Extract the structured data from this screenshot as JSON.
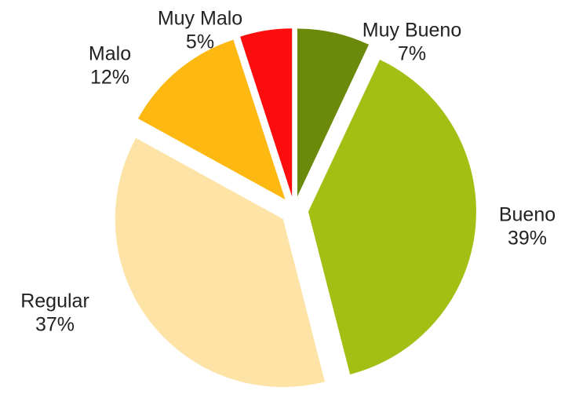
{
  "chart_data": {
    "type": "pie",
    "categories": [
      "Muy Bueno",
      "Bueno",
      "Regular",
      "Malo",
      "Muy Malo"
    ],
    "values": [
      7,
      39,
      37,
      12,
      5
    ],
    "value_labels": [
      "7%",
      "39%",
      "37%",
      "12%",
      "5%"
    ],
    "colors": [
      "#6b8a0c",
      "#a4bf13",
      "#fde3a5",
      "#fdb912",
      "#fd0d0d"
    ]
  }
}
